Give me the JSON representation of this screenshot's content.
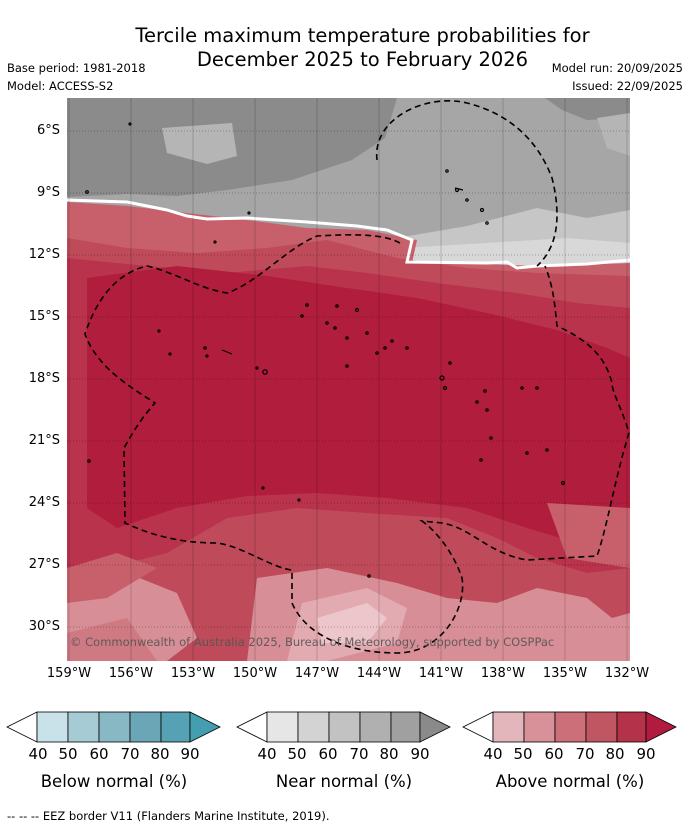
{
  "title_line1": "Tercile maximum temperature probabilities for",
  "title_line2": "December 2025 to February 2026",
  "base_period": "Base period: 1981-2018",
  "model": "Model: ACCESS-S2",
  "model_run": "Model run: 20/09/2025",
  "issued": "Issued: 22/09/2025",
  "copyright": "© Commonwealth of Australia 2025, Bureau of Meteorology, supported by COSPPac",
  "lat_labels": [
    "6°S",
    "9°S",
    "12°S",
    "15°S",
    "18°S",
    "21°S",
    "24°S",
    "27°S",
    "30°S"
  ],
  "lon_labels": [
    "159°W",
    "156°W",
    "153°W",
    "150°W",
    "147°W",
    "144°W",
    "141°W",
    "138°W",
    "135°W",
    "132°W"
  ],
  "map_extent": {
    "lon_min": -160.1,
    "lon_max": -131.9,
    "lat_min": -31.6,
    "lat_max": -4.6
  },
  "colorbars": [
    {
      "title": "Below normal (%)",
      "ticks": [
        "40",
        "50",
        "60",
        "70",
        "80",
        "90"
      ],
      "colors": [
        "#ffffff",
        "#c9e1e8",
        "#a6cbd4",
        "#88b8c4",
        "#6aa6b5",
        "#439fb0"
      ]
    },
    {
      "title": "Near normal (%)",
      "ticks": [
        "40",
        "50",
        "60",
        "70",
        "80",
        "90"
      ],
      "colors": [
        "#ffffff",
        "#e6e6e6",
        "#d3d3d3",
        "#c2c2c2",
        "#b0b0b0",
        "#a0a0a0",
        "#8a8a8a"
      ]
    },
    {
      "title": "Above normal (%)",
      "ticks": [
        "40",
        "50",
        "60",
        "70",
        "80",
        "90"
      ],
      "colors": [
        "#ffffff",
        "#e3b6bc",
        "#d89198",
        "#cc6f79",
        "#c05662",
        "#b4334a",
        "#b11b3d"
      ]
    }
  ],
  "footnote": "-- -- -- EEZ border V11 (Flanders Marine Institute, 2019)."
}
